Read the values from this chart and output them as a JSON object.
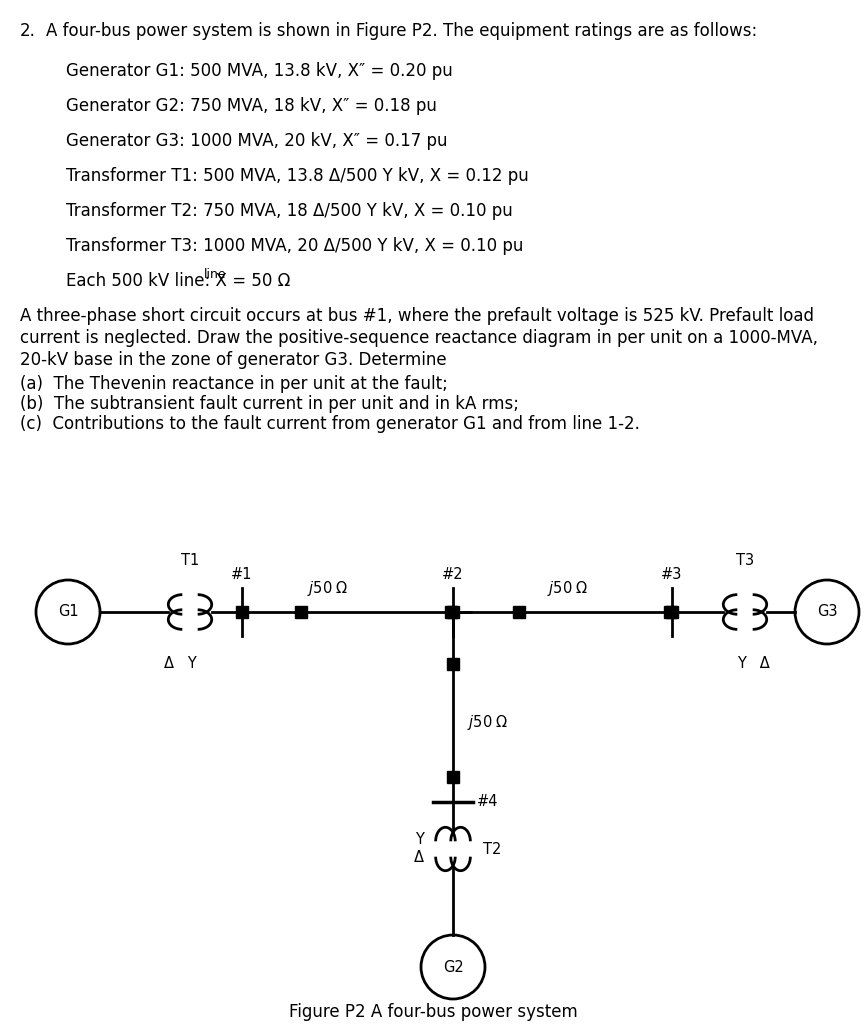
{
  "num_label": "2.",
  "line1": "A four-bus power system is shown in Figure P2. The equipment ratings are as follows:",
  "gen1": "Generator G1: 500 MVA, 13.8 kV, X″ = 0.20 pu",
  "gen2": "Generator G2: 750 MVA, 18 kV, X″ = 0.18 pu",
  "gen3": "Generator G3: 1000 MVA, 20 kV, X″ = 0.17 pu",
  "t1": "Transformer T1: 500 MVA, 13.8 Δ/500 Y kV, X = 0.12 pu",
  "t2": "Transformer T2: 750 MVA, 18 Δ/500 Y kV, X = 0.10 pu",
  "t3": "Transformer T3: 1000 MVA, 20 Δ/500 Y kV, X = 0.10 pu",
  "line_prefix": "Each 500 kV line: X",
  "line_sub": "line",
  "line_suffix": " = 50 Ω",
  "para1": "A three-phase short circuit occurs at bus #1, where the prefault voltage is 525 kV. Prefault load",
  "para2": "current is neglected. Draw the positive-sequence reactance diagram in per unit on a 1000-MVA,",
  "para3": "20-kV base in the zone of generator G3. Determine",
  "qa": "(a)  The Thevenin reactance in per unit at the fault;",
  "qb": "(b)  The subtransient fault current in per unit and in kA rms;",
  "qc": "(c)  Contributions to the fault current from generator G1 and from line 1-2.",
  "fig_caption": "Figure P2 A four-bus power system",
  "bg_color": "#ffffff",
  "text_color": "#000000",
  "fs_main": 12.0,
  "fs_diagram": 10.5,
  "fs_sub": 9.0
}
